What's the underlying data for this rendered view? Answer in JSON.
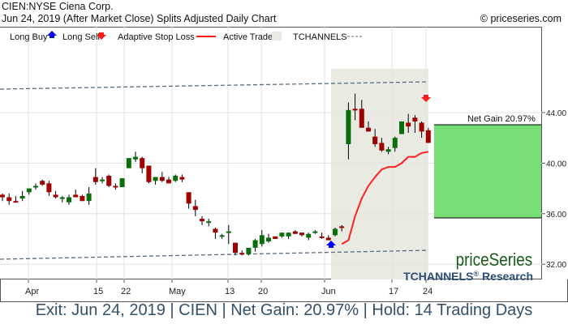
{
  "header": {
    "title": "CIEN:NYSE Ciena Corp.",
    "subtitle": "Jun 24, 2019 (After Market Close)  Splits Adjusted Daily Chart",
    "copyright": "© priceseries.com"
  },
  "legend": {
    "long_buy": "Long Buy",
    "long_sell": "Long Sell",
    "adaptive_stop_loss": "Adaptive Stop Loss",
    "active_trade": "Active Trade",
    "tchannels": "TCHANNELS"
  },
  "annotations": {
    "net_gain_label": "Net Gain 20.97%",
    "brand": "priceSeries",
    "research": "TCHANNELS",
    "research_reg": "®",
    "research_suffix": " Research"
  },
  "footer": {
    "text": "Exit: Jun 24, 2019 | CIEN | Net Gain: 20.97% | Hold: 14 Trading Days"
  },
  "colors": {
    "up_candle": "#0a6e0a",
    "down_candle": "#a00000",
    "stop_loss": "#ff2020",
    "active_trade_bg": "#e9ebe2",
    "gain_box": "#77dd77",
    "channel": "#5a6e80",
    "footer_text": "#34506b",
    "brand_green": "#1a5c1a",
    "research_blue": "#2a4d7a"
  },
  "chart_data": {
    "type": "candlestick",
    "title": "CIEN:NYSE Ciena Corp. — Splits Adjusted Daily Chart",
    "xlabel": "",
    "ylabel": "",
    "y_ticks": [
      "44.00",
      "40.00",
      "36.00",
      "32.00"
    ],
    "ylim": [
      31.0,
      46.5
    ],
    "x_ticks": [
      "Apr",
      "15",
      "22",
      "May",
      "13",
      "20",
      "Jun",
      "17",
      "24"
    ],
    "grid": true,
    "legend_position": "top",
    "candles": [
      {
        "o": 37.5,
        "h": 37.6,
        "l": 37.0,
        "c": 37.3
      },
      {
        "o": 37.3,
        "h": 37.6,
        "l": 36.7,
        "c": 37.0
      },
      {
        "o": 37.0,
        "h": 37.4,
        "l": 36.9,
        "c": 36.9
      },
      {
        "o": 37.2,
        "h": 37.8,
        "l": 37.0,
        "c": 37.4
      },
      {
        "o": 37.7,
        "h": 37.9,
        "l": 37.5,
        "c": 38.0
      },
      {
        "o": 38.1,
        "h": 38.4,
        "l": 37.9,
        "c": 38.2
      },
      {
        "o": 38.6,
        "h": 38.7,
        "l": 38.2,
        "c": 38.3
      },
      {
        "o": 38.4,
        "h": 38.6,
        "l": 37.4,
        "c": 37.7
      },
      {
        "o": 37.5,
        "h": 37.8,
        "l": 37.2,
        "c": 37.3
      },
      {
        "o": 37.2,
        "h": 37.4,
        "l": 36.9,
        "c": 37.3
      },
      {
        "o": 36.9,
        "h": 37.5,
        "l": 36.7,
        "c": 37.3
      },
      {
        "o": 37.5,
        "h": 37.9,
        "l": 37.3,
        "c": 37.3
      },
      {
        "o": 37.4,
        "h": 37.5,
        "l": 37.0,
        "c": 37.0
      },
      {
        "o": 37.0,
        "h": 38.1,
        "l": 36.7,
        "c": 37.6
      },
      {
        "o": 38.9,
        "h": 39.6,
        "l": 38.3,
        "c": 38.5
      },
      {
        "o": 38.6,
        "h": 38.9,
        "l": 38.4,
        "c": 38.7
      },
      {
        "o": 39.0,
        "h": 39.1,
        "l": 38.1,
        "c": 38.2
      },
      {
        "o": 38.2,
        "h": 38.4,
        "l": 37.9,
        "c": 38.1
      },
      {
        "o": 38.1,
        "h": 38.8,
        "l": 38.1,
        "c": 38.8
      },
      {
        "o": 39.6,
        "h": 40.2,
        "l": 39.6,
        "c": 40.4
      },
      {
        "o": 40.3,
        "h": 40.9,
        "l": 40.1,
        "c": 40.5
      },
      {
        "o": 40.4,
        "h": 40.5,
        "l": 39.2,
        "c": 39.6
      },
      {
        "o": 39.8,
        "h": 39.8,
        "l": 38.4,
        "c": 38.5
      },
      {
        "o": 38.6,
        "h": 38.9,
        "l": 38.3,
        "c": 38.9
      },
      {
        "o": 38.9,
        "h": 39.3,
        "l": 38.5,
        "c": 38.6
      },
      {
        "o": 38.7,
        "h": 38.9,
        "l": 38.4,
        "c": 38.4
      },
      {
        "o": 38.6,
        "h": 39.1,
        "l": 38.5,
        "c": 39.0
      },
      {
        "o": 38.9,
        "h": 39.1,
        "l": 38.5,
        "c": 38.7
      },
      {
        "o": 37.7,
        "h": 37.7,
        "l": 36.4,
        "c": 36.8
      },
      {
        "o": 36.6,
        "h": 37.1,
        "l": 35.8,
        "c": 36.3
      },
      {
        "o": 35.6,
        "h": 35.8,
        "l": 35.1,
        "c": 35.4
      },
      {
        "o": 35.3,
        "h": 35.6,
        "l": 35.0,
        "c": 35.4
      },
      {
        "o": 34.8,
        "h": 34.9,
        "l": 34.0,
        "c": 34.5
      },
      {
        "o": 34.3,
        "h": 34.4,
        "l": 34.0,
        "c": 34.3
      },
      {
        "o": 34.5,
        "h": 35.1,
        "l": 33.6,
        "c": 34.6
      },
      {
        "o": 33.7,
        "h": 33.7,
        "l": 32.7,
        "c": 32.9
      },
      {
        "o": 32.9,
        "h": 33.1,
        "l": 32.7,
        "c": 32.8
      },
      {
        "o": 32.8,
        "h": 33.1,
        "l": 32.7,
        "c": 33.3
      },
      {
        "o": 33.3,
        "h": 34.0,
        "l": 33.0,
        "c": 33.9
      },
      {
        "o": 33.6,
        "h": 34.7,
        "l": 33.4,
        "c": 34.3
      },
      {
        "o": 33.8,
        "h": 34.4,
        "l": 33.7,
        "c": 34.1
      },
      {
        "o": 34.2,
        "h": 34.2,
        "l": 34.0,
        "c": 34.0
      },
      {
        "o": 34.2,
        "h": 34.5,
        "l": 34.1,
        "c": 34.5
      },
      {
        "o": 34.2,
        "h": 34.5,
        "l": 34.0,
        "c": 34.5
      },
      {
        "o": 34.6,
        "h": 34.7,
        "l": 34.4,
        "c": 34.4
      },
      {
        "o": 34.5,
        "h": 34.5,
        "l": 34.2,
        "c": 34.3
      },
      {
        "o": 34.1,
        "h": 34.5,
        "l": 33.9,
        "c": 34.4
      },
      {
        "o": 34.5,
        "h": 34.7,
        "l": 34.4,
        "c": 34.6
      },
      {
        "o": 34.2,
        "h": 34.5,
        "l": 34.0,
        "c": 34.1
      },
      {
        "o": 34.1,
        "h": 34.3,
        "l": 33.9,
        "c": 33.9
      },
      {
        "o": 34.3,
        "h": 34.9,
        "l": 34.2,
        "c": 34.8
      },
      {
        "o": 35.0,
        "h": 35.1,
        "l": 34.6,
        "c": 34.9
      },
      {
        "o": 41.5,
        "h": 44.8,
        "l": 40.3,
        "c": 44.2
      },
      {
        "o": 44.3,
        "h": 45.5,
        "l": 43.4,
        "c": 44.2
      },
      {
        "o": 44.3,
        "h": 45.0,
        "l": 42.8,
        "c": 42.8
      },
      {
        "o": 42.8,
        "h": 43.3,
        "l": 42.5,
        "c": 42.5
      },
      {
        "o": 42.1,
        "h": 42.7,
        "l": 41.3,
        "c": 41.5
      },
      {
        "o": 41.6,
        "h": 42.0,
        "l": 40.9,
        "c": 41.0
      },
      {
        "o": 40.9,
        "h": 41.3,
        "l": 40.7,
        "c": 41.1
      },
      {
        "o": 41.2,
        "h": 42.1,
        "l": 40.9,
        "c": 42.0
      },
      {
        "o": 42.3,
        "h": 43.3,
        "l": 42.4,
        "c": 43.3
      },
      {
        "o": 43.2,
        "h": 43.9,
        "l": 42.4,
        "c": 42.9
      },
      {
        "o": 43.6,
        "h": 43.8,
        "l": 42.4,
        "c": 43.3
      },
      {
        "o": 43.2,
        "h": 43.3,
        "l": 42.0,
        "c": 42.5
      },
      {
        "o": 42.6,
        "h": 42.8,
        "l": 41.6,
        "c": 41.6
      }
    ],
    "stop_loss_line": [
      {
        "i": 51,
        "v": 33.6
      },
      {
        "i": 52,
        "v": 33.9
      },
      {
        "i": 53,
        "v": 35.8
      },
      {
        "i": 54,
        "v": 37.2
      },
      {
        "i": 55,
        "v": 38.2
      },
      {
        "i": 56,
        "v": 38.9
      },
      {
        "i": 57,
        "v": 39.5
      },
      {
        "i": 58,
        "v": 39.7
      },
      {
        "i": 59,
        "v": 39.7
      },
      {
        "i": 60,
        "v": 40.0
      },
      {
        "i": 61,
        "v": 40.5
      },
      {
        "i": 62,
        "v": 40.5
      },
      {
        "i": 63,
        "v": 40.8
      },
      {
        "i": 64,
        "v": 40.9
      }
    ],
    "tchannel_upper": {
      "start": 45.5,
      "end": 46.5
    },
    "tchannel_lower": {
      "start": 32.3,
      "end": 33.4
    },
    "long_buy": {
      "date": "Jun 3",
      "price": 33.2
    },
    "long_sell": {
      "date": "Jun 24",
      "price": 44.4
    },
    "net_gain_box": {
      "entry": 35.7,
      "exit": 43.2,
      "gain_pct": 20.97
    },
    "trade": {
      "entry_date": "Jun 3, 2019",
      "exit_date": "Jun 24, 2019",
      "net_gain_pct": 20.97,
      "hold_days": 14
    }
  }
}
